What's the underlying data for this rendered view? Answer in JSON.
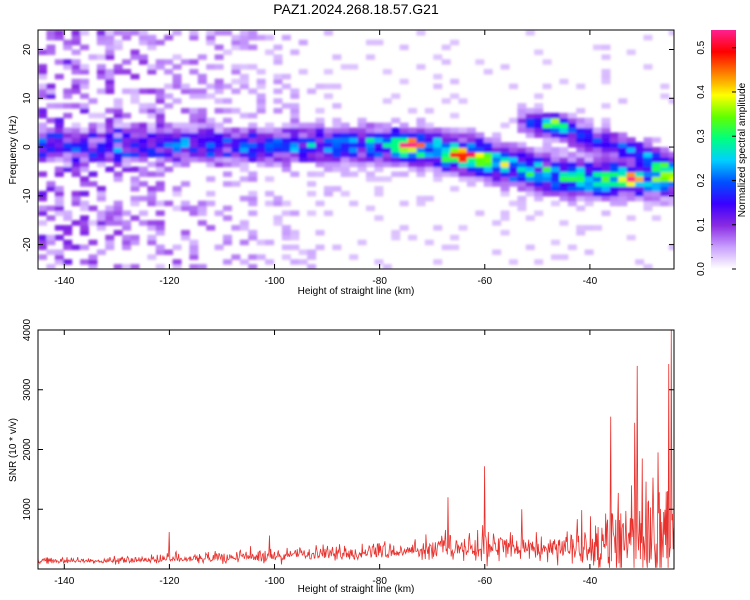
{
  "figure": {
    "title": "PAZ1.2024.268.18.57.G21"
  },
  "chart_data": [
    {
      "type": "heatmap",
      "xlabel": "Height of straight line (km)",
      "ylabel": "Frequency (Hz)",
      "xlim": [
        -145,
        -24
      ],
      "ylim": [
        -25,
        24
      ],
      "xticks": [
        -140,
        -120,
        -100,
        -80,
        -60,
        -40
      ],
      "yticks": [
        -20,
        -10,
        0,
        10,
        20
      ],
      "colorbar": {
        "label": "Normalized spectral amplitude",
        "range": [
          0,
          0.54
        ],
        "ticks": [
          0.0,
          0.1,
          0.2,
          0.3,
          0.4,
          0.5
        ],
        "tick_labels": [
          "0.0",
          "0.1",
          "0.2",
          "0.3",
          "0.4",
          "0.5"
        ],
        "colors": [
          "#ffffff",
          "#c9a0ff",
          "#8a2be2",
          "#3a00ff",
          "#0050ff",
          "#00d0ff",
          "#00ff80",
          "#60ff00",
          "#ffff00",
          "#ff8000",
          "#ff0000",
          "#ff2090"
        ]
      },
      "ridge": {
        "description_points_x": [
          -145,
          -120,
          -100,
          -80,
          -70,
          -60,
          -50,
          -40,
          -24
        ],
        "frequency_y": [
          0,
          0,
          0,
          0,
          -1,
          -3,
          -6,
          -7,
          -7
        ],
        "amplitude": [
          0.12,
          0.16,
          0.18,
          0.25,
          0.36,
          0.33,
          0.28,
          0.3,
          0.28
        ]
      },
      "upper_branch": {
        "x": [
          -55,
          -48,
          -40,
          -30,
          -24
        ],
        "frequency_y": [
          5,
          4,
          1,
          -2,
          -5
        ],
        "amplitude": [
          0.15,
          0.25,
          0.2,
          0.2,
          0.2
        ]
      },
      "peaks": [
        {
          "x": -75,
          "y": 0,
          "amplitude": 0.52
        },
        {
          "x": -65,
          "y": -2.5,
          "amplitude": 0.45
        },
        {
          "x": -33,
          "y": -7,
          "amplitude": 0.48
        },
        {
          "x": -47,
          "y": 4.5,
          "amplitude": 0.3
        }
      ]
    },
    {
      "type": "line",
      "xlabel": "Height of straight line (km)",
      "ylabel": "SNR (10 * v/v)",
      "xlim": [
        -145,
        -24
      ],
      "ylim": [
        0,
        4000
      ],
      "xticks": [
        -140,
        -120,
        -100,
        -80,
        -60,
        -40
      ],
      "yticks": [
        1000,
        2000,
        3000,
        4000
      ],
      "color": "#e8302c",
      "envelope": {
        "x": [
          -145,
          -130,
          -120,
          -110,
          -100,
          -90,
          -80,
          -70,
          -65,
          -60,
          -55,
          -50,
          -45,
          -40,
          -35,
          -30,
          -26,
          -24
        ],
        "baseline": [
          130,
          140,
          160,
          180,
          210,
          240,
          280,
          300,
          320,
          330,
          340,
          330,
          330,
          350,
          400,
          450,
          450,
          450
        ],
        "noise_amplitude": [
          60,
          70,
          90,
          100,
          120,
          140,
          180,
          220,
          300,
          350,
          300,
          260,
          240,
          500,
          900,
          1100,
          1200,
          1200
        ]
      },
      "spikes": [
        {
          "x": -120,
          "y": 620
        },
        {
          "x": -101,
          "y": 560
        },
        {
          "x": -67,
          "y": 1200
        },
        {
          "x": -60,
          "y": 1720
        },
        {
          "x": -53,
          "y": 1000
        },
        {
          "x": -36,
          "y": 2550
        },
        {
          "x": -31,
          "y": 3400
        },
        {
          "x": -25,
          "y": 3430
        },
        {
          "x": -24.5,
          "y": 4000
        }
      ]
    }
  ]
}
